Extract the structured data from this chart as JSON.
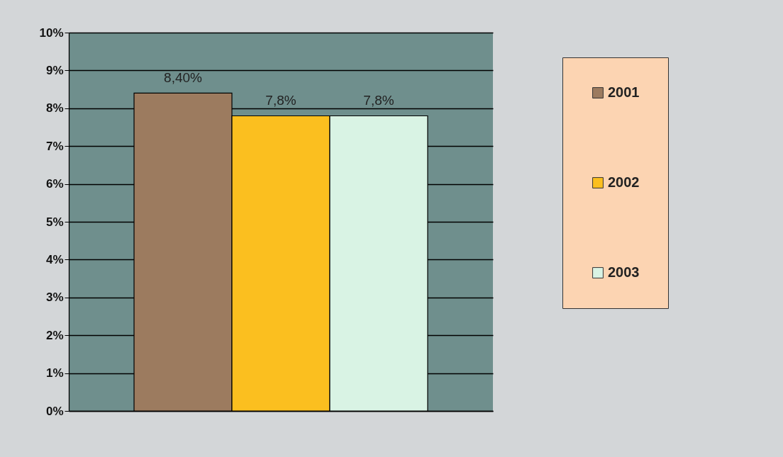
{
  "chart_data": {
    "type": "bar",
    "categories": [
      null
    ],
    "series": [
      {
        "name": "2001",
        "color": "#9c7b5f",
        "values": [
          8.4
        ],
        "value_labels": [
          "8,40%"
        ]
      },
      {
        "name": "2002",
        "color": "#fbbf1f",
        "values": [
          7.8
        ],
        "value_labels": [
          "7,8%"
        ]
      },
      {
        "name": "2003",
        "color": "#d9f3e4",
        "values": [
          7.8
        ],
        "value_labels": [
          "7,8%"
        ]
      }
    ],
    "ylim": [
      0,
      10
    ],
    "yticks": [
      {
        "value": 0,
        "label": "0%"
      },
      {
        "value": 1,
        "label": "1%"
      },
      {
        "value": 2,
        "label": "2%"
      },
      {
        "value": 3,
        "label": "3%"
      },
      {
        "value": 4,
        "label": "4%"
      },
      {
        "value": 5,
        "label": "5%"
      },
      {
        "value": 6,
        "label": "6%"
      },
      {
        "value": 7,
        "label": "7%"
      },
      {
        "value": 8,
        "label": "8%"
      },
      {
        "value": 9,
        "label": "9%"
      },
      {
        "value": 10,
        "label": "10%"
      }
    ],
    "grid": "y",
    "legend": "right"
  }
}
